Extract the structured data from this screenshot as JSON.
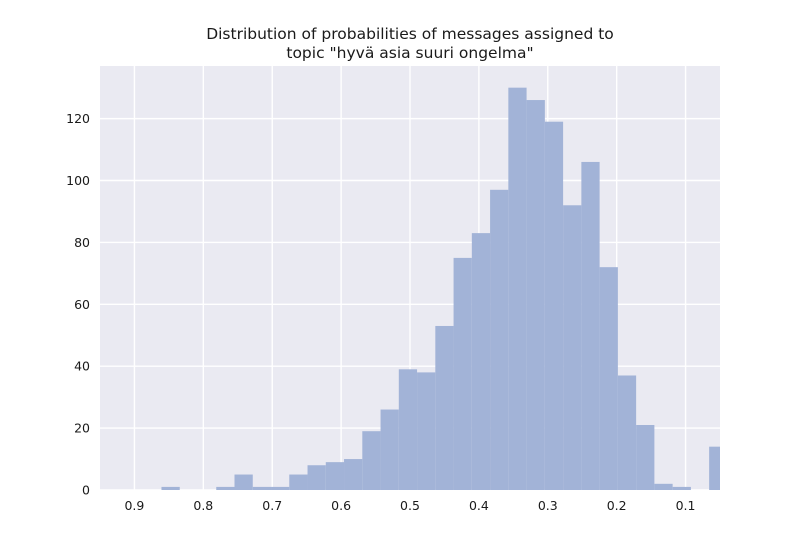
{
  "chart_data": {
    "type": "bar",
    "title_lines": [
      "Distribution of probabilities of messages assigned to",
      "topic \"hyvä asia suuri ongelma\""
    ],
    "xlabel": "",
    "ylabel": "",
    "x_reversed": true,
    "xlim": [
      0.95,
      0.05
    ],
    "ylim": [
      0,
      137
    ],
    "x_ticks": [
      0.9,
      0.8,
      0.7,
      0.6,
      0.5,
      0.4,
      0.3,
      0.2,
      0.1
    ],
    "x_tick_labels": [
      "0.9",
      "0.8",
      "0.7",
      "0.6",
      "0.5",
      "0.4",
      "0.3",
      "0.2",
      "0.1"
    ],
    "y_ticks": [
      0,
      20,
      40,
      60,
      80,
      100,
      120
    ],
    "y_tick_labels": [
      "0",
      "20",
      "40",
      "60",
      "80",
      "100",
      "120"
    ],
    "grid": true,
    "bar_color": "#a2b3d7",
    "background_color": "#eaeaf2",
    "bin_width": 0.0265,
    "bins": [
      {
        "x": 0.8475,
        "value": 1
      },
      {
        "x": 0.821,
        "value": 0
      },
      {
        "x": 0.7945,
        "value": 0
      },
      {
        "x": 0.768,
        "value": 1
      },
      {
        "x": 0.7415,
        "value": 5
      },
      {
        "x": 0.715,
        "value": 1
      },
      {
        "x": 0.6885,
        "value": 1
      },
      {
        "x": 0.662,
        "value": 5
      },
      {
        "x": 0.6355,
        "value": 8
      },
      {
        "x": 0.609,
        "value": 9
      },
      {
        "x": 0.5825,
        "value": 10
      },
      {
        "x": 0.556,
        "value": 19
      },
      {
        "x": 0.5295,
        "value": 26
      },
      {
        "x": 0.503,
        "value": 39
      },
      {
        "x": 0.4765,
        "value": 38
      },
      {
        "x": 0.45,
        "value": 53
      },
      {
        "x": 0.4235,
        "value": 75
      },
      {
        "x": 0.397,
        "value": 83
      },
      {
        "x": 0.3705,
        "value": 97
      },
      {
        "x": 0.344,
        "value": 130
      },
      {
        "x": 0.3175,
        "value": 126
      },
      {
        "x": 0.291,
        "value": 119
      },
      {
        "x": 0.2645,
        "value": 92
      },
      {
        "x": 0.238,
        "value": 106
      },
      {
        "x": 0.2115,
        "value": 72
      },
      {
        "x": 0.185,
        "value": 37
      },
      {
        "x": 0.1585,
        "value": 21
      },
      {
        "x": 0.132,
        "value": 2
      },
      {
        "x": 0.1055,
        "value": 1
      },
      {
        "x": 0.079,
        "value": 0
      },
      {
        "x": 0.0525,
        "value": 14
      }
    ]
  }
}
